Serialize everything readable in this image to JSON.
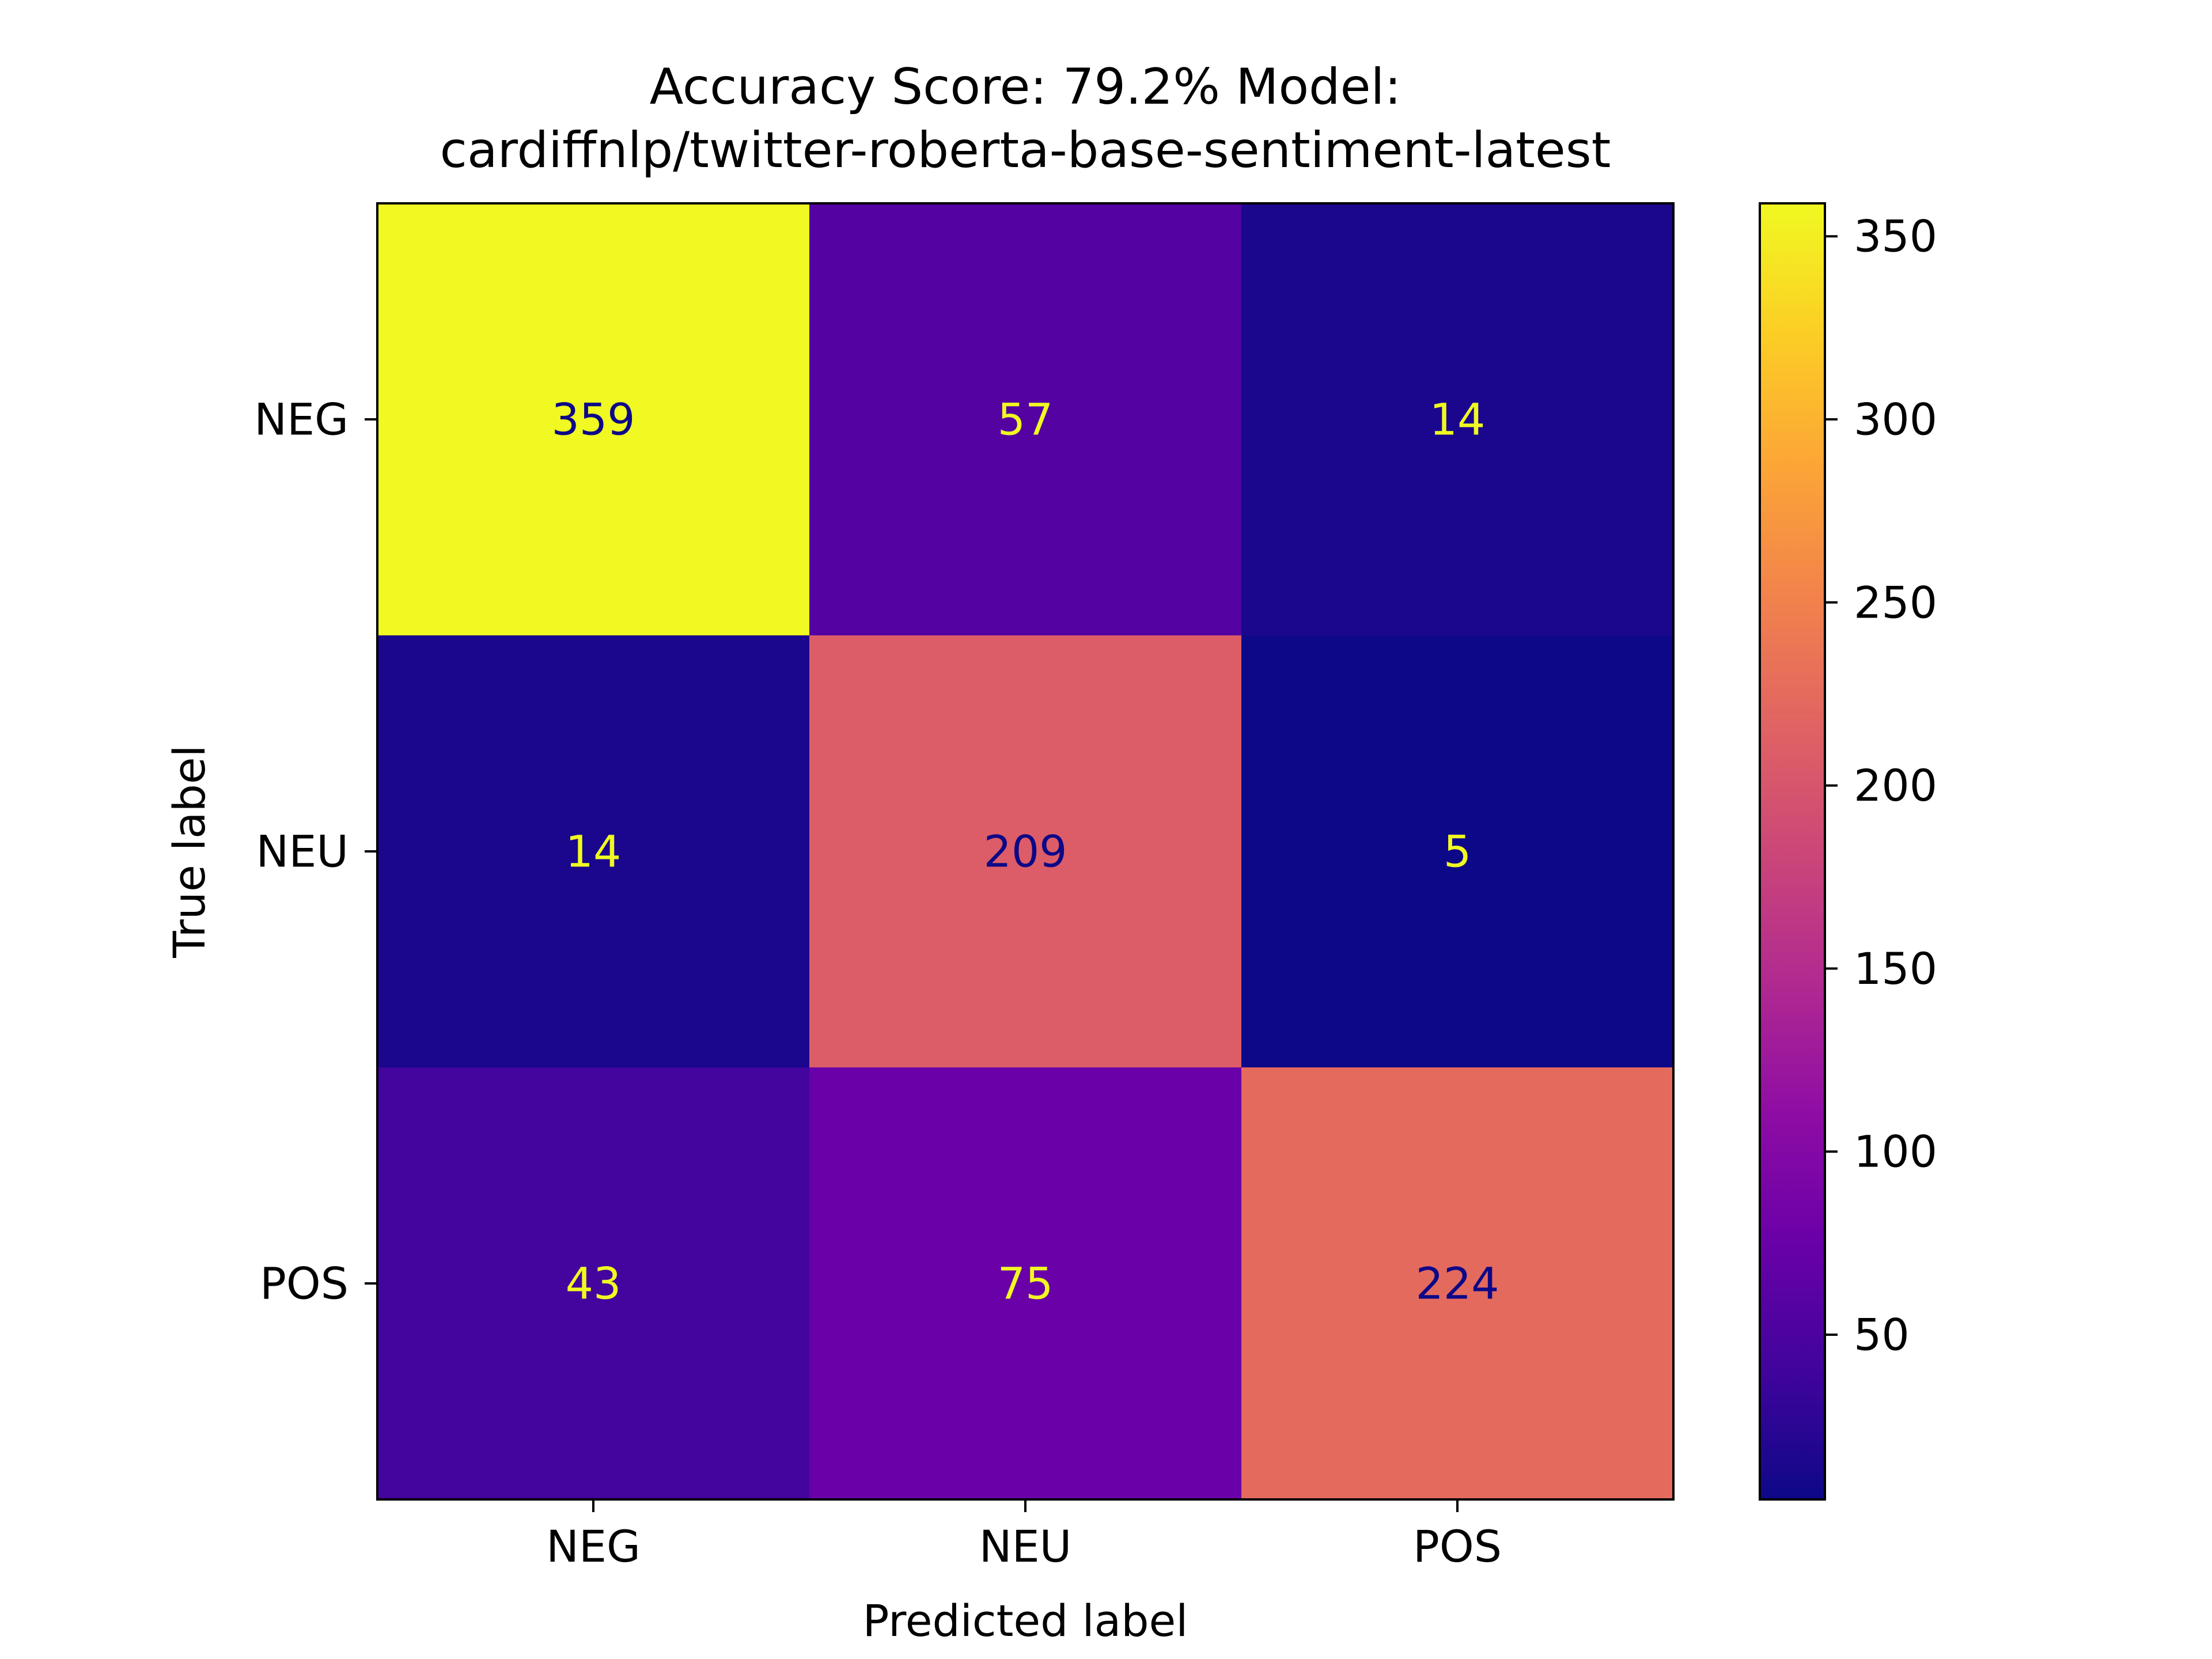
{
  "chart_data": {
    "type": "heatmap",
    "title_line1": "Accuracy Score: 79.2% Model:",
    "title_line2": "cardiffnlp/twitter-roberta-base-sentiment-latest",
    "xlabel": "Predicted label",
    "ylabel": "True label",
    "x_categories": [
      "NEG",
      "NEU",
      "POS"
    ],
    "y_categories": [
      "NEG",
      "NEU",
      "POS"
    ],
    "matrix": [
      [
        359,
        57,
        14
      ],
      [
        14,
        209,
        5
      ],
      [
        43,
        75,
        224
      ]
    ],
    "colormap": "plasma",
    "colorbar": {
      "range": [
        5,
        359
      ],
      "ticks": [
        50,
        100,
        150,
        200,
        250,
        300,
        350
      ]
    },
    "text_colors": {
      "on_dark": "#f0f921",
      "on_light": "#0d0887"
    },
    "grid": false
  }
}
